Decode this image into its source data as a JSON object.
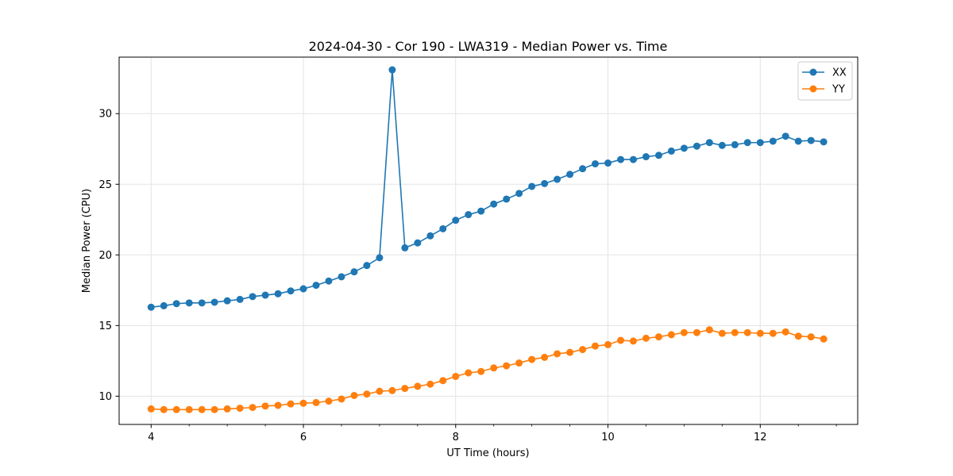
{
  "chart_data": {
    "type": "line",
    "title": "2024-04-30 - Cor 190 - LWA319 - Median Power vs. Time",
    "xlabel": "UT Time (hours)",
    "ylabel": "Median Power (CPU)",
    "xlim": [
      3.58,
      13.28
    ],
    "ylim": [
      8.0,
      34.0
    ],
    "xticks": [
      4,
      6,
      8,
      10,
      12
    ],
    "xtick_labels": [
      "4",
      "6",
      "8",
      "10",
      "12"
    ],
    "yticks": [
      10,
      15,
      20,
      25,
      30
    ],
    "ytick_labels": [
      "10",
      "15",
      "20",
      "25",
      "30"
    ],
    "grid": true,
    "legend_position": "top-right",
    "x": [
      4.0,
      4.167,
      4.333,
      4.5,
      4.667,
      4.833,
      5.0,
      5.167,
      5.333,
      5.5,
      5.667,
      5.833,
      6.0,
      6.167,
      6.333,
      6.5,
      6.667,
      6.833,
      7.0,
      7.167,
      7.333,
      7.5,
      7.667,
      7.833,
      8.0,
      8.167,
      8.333,
      8.5,
      8.667,
      8.833,
      9.0,
      9.167,
      9.333,
      9.5,
      9.667,
      9.833,
      10.0,
      10.167,
      10.333,
      10.5,
      10.667,
      10.833,
      11.0,
      11.167,
      11.333,
      11.5,
      11.667,
      11.833,
      12.0,
      12.167,
      12.333,
      12.5,
      12.667,
      12.833
    ],
    "series": [
      {
        "name": "XX",
        "color": "#1f77b4",
        "values": [
          16.3,
          16.4,
          16.55,
          16.6,
          16.6,
          16.65,
          16.75,
          16.85,
          17.05,
          17.15,
          17.25,
          17.45,
          17.6,
          17.85,
          18.15,
          18.45,
          18.8,
          19.25,
          19.8,
          33.1,
          20.5,
          20.85,
          21.35,
          21.85,
          22.45,
          22.85,
          23.1,
          23.6,
          23.95,
          24.35,
          24.85,
          25.05,
          25.35,
          25.7,
          26.1,
          26.45,
          26.5,
          26.75,
          26.75,
          26.95,
          27.05,
          27.35,
          27.55,
          27.7,
          27.95,
          27.75,
          27.8,
          27.95,
          27.95,
          28.05,
          28.4,
          28.05,
          28.1,
          28.0
        ]
      },
      {
        "name": "YY",
        "color": "#ff7f0e",
        "values": [
          9.1,
          9.05,
          9.05,
          9.05,
          9.05,
          9.05,
          9.1,
          9.15,
          9.2,
          9.3,
          9.35,
          9.45,
          9.5,
          9.55,
          9.65,
          9.8,
          10.05,
          10.15,
          10.35,
          10.4,
          10.55,
          10.7,
          10.85,
          11.1,
          11.4,
          11.65,
          11.75,
          12.0,
          12.15,
          12.35,
          12.6,
          12.75,
          13.0,
          13.1,
          13.3,
          13.55,
          13.65,
          13.95,
          13.9,
          14.1,
          14.2,
          14.35,
          14.5,
          14.5,
          14.7,
          14.45,
          14.5,
          14.5,
          14.45,
          14.45,
          14.55,
          14.25,
          14.2,
          14.05
        ]
      }
    ]
  }
}
